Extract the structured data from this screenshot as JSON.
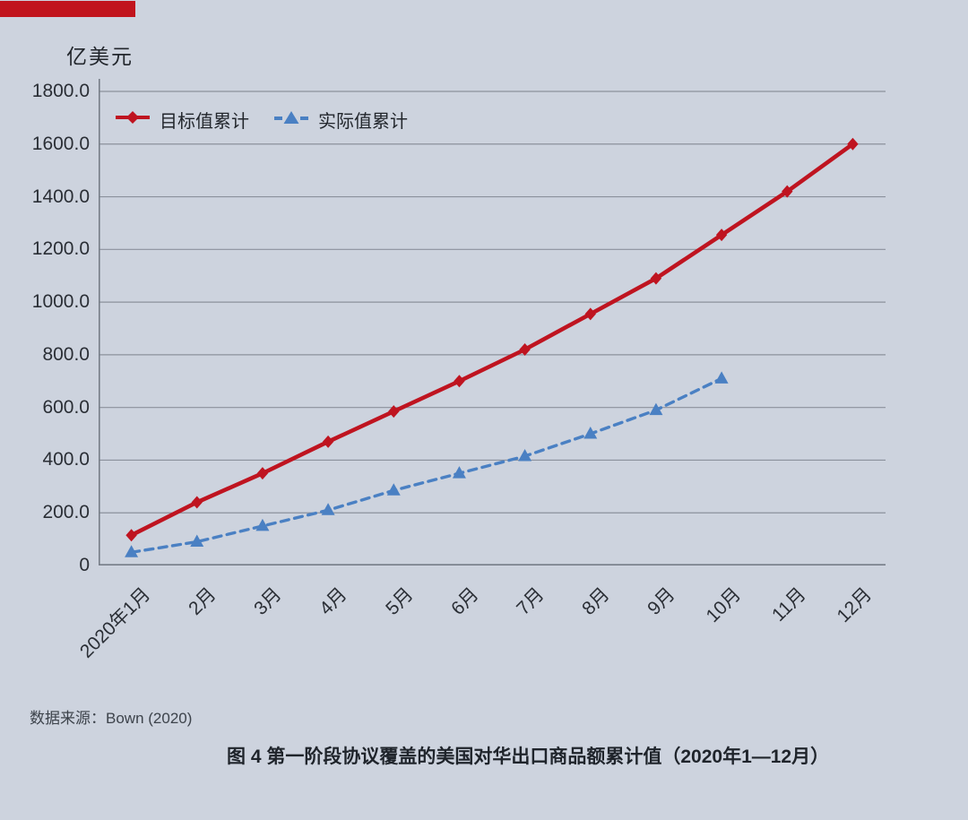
{
  "page": {
    "background_color": "#cdd3de",
    "accent_bar_color": "#c1141d"
  },
  "chart_data": {
    "type": "line",
    "title": "图 4 第一阶段协议覆盖的美国对华出口商品额累计值（2020年1—12月）",
    "ylabel": "亿美元",
    "xlabel": "",
    "source": "数据来源：Bown (2020)",
    "categories": [
      "2020年1月",
      "2月",
      "3月",
      "4月",
      "5月",
      "6月",
      "7月",
      "8月",
      "9月",
      "10月",
      "11月",
      "12月"
    ],
    "y_ticks": [
      "1800.0",
      "1600.0",
      "1400.0",
      "1200.0",
      "1000.0",
      "800.0",
      "600.0",
      "400.0",
      "200.0",
      "0"
    ],
    "ylim": [
      0,
      1800
    ],
    "grid": true,
    "grid_color": "#8b919c",
    "axis_color": "#767d87",
    "legend_position": "top-left-inside",
    "series": [
      {
        "name": "目标值累计",
        "color": "#bf1420",
        "style": "solid",
        "marker": "diamond",
        "values": [
          115,
          240,
          350,
          470,
          585,
          700,
          820,
          955,
          1090,
          1255,
          1420,
          1600
        ]
      },
      {
        "name": "实际值累计",
        "color": "#4a80c3",
        "style": "dashed",
        "marker": "triangle",
        "values": [
          50,
          90,
          150,
          210,
          285,
          350,
          415,
          500,
          590,
          710
        ]
      }
    ]
  }
}
